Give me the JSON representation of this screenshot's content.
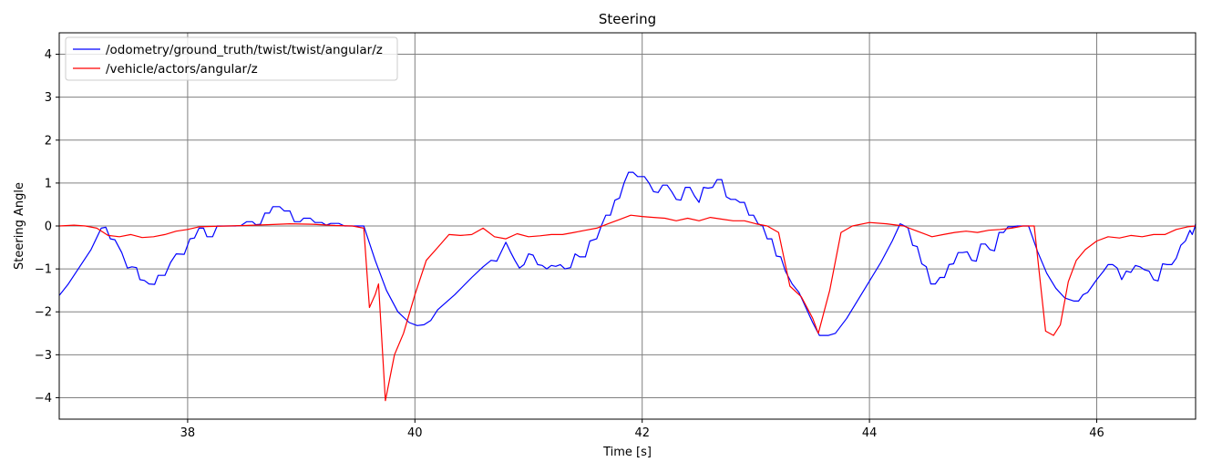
{
  "chart_data": {
    "type": "line",
    "title": "Steering",
    "xlabel": "Time [s]",
    "ylabel": "Steering Angle",
    "xlim": [
      36.87,
      46.87
    ],
    "ylim": [
      -4.5,
      4.5
    ],
    "xticks": [
      38,
      40,
      42,
      44,
      46
    ],
    "yticks": [
      -4,
      -3,
      -2,
      -1,
      0,
      1,
      2,
      3,
      4
    ],
    "grid": true,
    "legend_position": "upper left",
    "series": [
      {
        "name": "/odometry/ground_truth/twist/twist/angular/z",
        "color": "#0000ff",
        "points": [
          [
            36.87,
            -1.62
          ],
          [
            36.95,
            -1.35
          ],
          [
            37.05,
            -0.95
          ],
          [
            37.15,
            -0.55
          ],
          [
            37.24,
            -0.05
          ],
          [
            37.28,
            -0.03
          ],
          [
            37.32,
            -0.3
          ],
          [
            37.36,
            -0.32
          ],
          [
            37.42,
            -0.62
          ],
          [
            37.47,
            -0.98
          ],
          [
            37.51,
            -0.95
          ],
          [
            37.55,
            -0.97
          ],
          [
            37.58,
            -1.25
          ],
          [
            37.62,
            -1.27
          ],
          [
            37.66,
            -1.35
          ],
          [
            37.71,
            -1.36
          ],
          [
            37.74,
            -1.15
          ],
          [
            37.8,
            -1.15
          ],
          [
            37.85,
            -0.85
          ],
          [
            37.9,
            -0.65
          ],
          [
            37.97,
            -0.66
          ],
          [
            38.02,
            -0.3
          ],
          [
            38.06,
            -0.28
          ],
          [
            38.1,
            -0.05
          ],
          [
            38.14,
            -0.05
          ],
          [
            38.17,
            -0.25
          ],
          [
            38.22,
            -0.25
          ],
          [
            38.26,
            0.0
          ],
          [
            38.33,
            0.0
          ],
          [
            38.38,
            0.0
          ],
          [
            38.42,
            0.0
          ],
          [
            38.47,
            0.01
          ],
          [
            38.52,
            0.1
          ],
          [
            38.57,
            0.1
          ],
          [
            38.6,
            0.03
          ],
          [
            38.64,
            0.04
          ],
          [
            38.68,
            0.3
          ],
          [
            38.72,
            0.3
          ],
          [
            38.75,
            0.45
          ],
          [
            38.81,
            0.45
          ],
          [
            38.85,
            0.35
          ],
          [
            38.9,
            0.35
          ],
          [
            38.94,
            0.1
          ],
          [
            38.99,
            0.1
          ],
          [
            39.02,
            0.18
          ],
          [
            39.08,
            0.18
          ],
          [
            39.12,
            0.08
          ],
          [
            39.18,
            0.08
          ],
          [
            39.22,
            0.02
          ],
          [
            39.26,
            0.06
          ],
          [
            39.33,
            0.06
          ],
          [
            39.38,
            0.0
          ],
          [
            39.55,
            0.0
          ],
          [
            39.65,
            -0.8
          ],
          [
            39.75,
            -1.5
          ],
          [
            39.85,
            -2.0
          ],
          [
            39.95,
            -2.25
          ],
          [
            40.02,
            -2.32
          ],
          [
            40.08,
            -2.3
          ],
          [
            40.14,
            -2.2
          ],
          [
            40.2,
            -1.95
          ],
          [
            40.35,
            -1.6
          ],
          [
            40.5,
            -1.2
          ],
          [
            40.6,
            -0.95
          ],
          [
            40.67,
            -0.8
          ],
          [
            40.72,
            -0.82
          ],
          [
            40.76,
            -0.6
          ],
          [
            40.8,
            -0.38
          ],
          [
            40.84,
            -0.6
          ],
          [
            40.88,
            -0.8
          ],
          [
            40.92,
            -0.98
          ],
          [
            40.96,
            -0.9
          ],
          [
            41.0,
            -0.65
          ],
          [
            41.04,
            -0.68
          ],
          [
            41.08,
            -0.9
          ],
          [
            41.12,
            -0.92
          ],
          [
            41.16,
            -1.0
          ],
          [
            41.2,
            -0.92
          ],
          [
            41.24,
            -0.94
          ],
          [
            41.28,
            -0.9
          ],
          [
            41.32,
            -1.0
          ],
          [
            41.37,
            -0.97
          ],
          [
            41.41,
            -0.65
          ],
          [
            41.45,
            -0.72
          ],
          [
            41.5,
            -0.72
          ],
          [
            41.54,
            -0.35
          ],
          [
            41.6,
            -0.3
          ],
          [
            41.64,
            0.0
          ],
          [
            41.68,
            0.25
          ],
          [
            41.72,
            0.25
          ],
          [
            41.76,
            0.6
          ],
          [
            41.8,
            0.65
          ],
          [
            41.84,
            1.0
          ],
          [
            41.88,
            1.25
          ],
          [
            41.92,
            1.25
          ],
          [
            41.96,
            1.15
          ],
          [
            42.02,
            1.15
          ],
          [
            42.06,
            1.0
          ],
          [
            42.1,
            0.8
          ],
          [
            42.14,
            0.78
          ],
          [
            42.18,
            0.95
          ],
          [
            42.22,
            0.95
          ],
          [
            42.26,
            0.8
          ],
          [
            42.3,
            0.62
          ],
          [
            42.34,
            0.6
          ],
          [
            42.38,
            0.9
          ],
          [
            42.42,
            0.9
          ],
          [
            42.46,
            0.7
          ],
          [
            42.5,
            0.55
          ],
          [
            42.54,
            0.9
          ],
          [
            42.58,
            0.88
          ],
          [
            42.62,
            0.9
          ],
          [
            42.66,
            1.08
          ],
          [
            42.7,
            1.08
          ],
          [
            42.74,
            0.68
          ],
          [
            42.78,
            0.62
          ],
          [
            42.82,
            0.62
          ],
          [
            42.86,
            0.55
          ],
          [
            42.9,
            0.55
          ],
          [
            42.94,
            0.25
          ],
          [
            42.98,
            0.25
          ],
          [
            43.02,
            0.05
          ],
          [
            43.06,
            0.0
          ],
          [
            43.1,
            -0.3
          ],
          [
            43.14,
            -0.3
          ],
          [
            43.18,
            -0.7
          ],
          [
            43.22,
            -0.72
          ],
          [
            43.26,
            -1.05
          ],
          [
            43.32,
            -1.35
          ],
          [
            43.38,
            -1.55
          ],
          [
            43.44,
            -1.9
          ],
          [
            43.5,
            -2.25
          ],
          [
            43.56,
            -2.55
          ],
          [
            43.64,
            -2.55
          ],
          [
            43.7,
            -2.5
          ],
          [
            43.8,
            -2.15
          ],
          [
            43.95,
            -1.5
          ],
          [
            44.1,
            -0.85
          ],
          [
            44.2,
            -0.35
          ],
          [
            44.27,
            0.05
          ],
          [
            44.31,
            0.0
          ],
          [
            44.34,
            -0.05
          ],
          [
            44.38,
            -0.45
          ],
          [
            44.42,
            -0.48
          ],
          [
            44.46,
            -0.88
          ],
          [
            44.5,
            -0.95
          ],
          [
            44.54,
            -1.35
          ],
          [
            44.58,
            -1.35
          ],
          [
            44.62,
            -1.2
          ],
          [
            44.66,
            -1.2
          ],
          [
            44.7,
            -0.9
          ],
          [
            44.74,
            -0.88
          ],
          [
            44.78,
            -0.62
          ],
          [
            44.82,
            -0.62
          ],
          [
            44.86,
            -0.6
          ],
          [
            44.9,
            -0.8
          ],
          [
            44.94,
            -0.82
          ],
          [
            44.98,
            -0.42
          ],
          [
            45.02,
            -0.42
          ],
          [
            45.06,
            -0.55
          ],
          [
            45.1,
            -0.58
          ],
          [
            45.14,
            -0.15
          ],
          [
            45.18,
            -0.15
          ],
          [
            45.22,
            -0.02
          ],
          [
            45.26,
            -0.02
          ],
          [
            45.3,
            0.0
          ],
          [
            45.4,
            0.0
          ],
          [
            45.48,
            -0.6
          ],
          [
            45.56,
            -1.1
          ],
          [
            45.64,
            -1.45
          ],
          [
            45.72,
            -1.68
          ],
          [
            45.8,
            -1.75
          ],
          [
            45.84,
            -1.75
          ],
          [
            45.88,
            -1.6
          ],
          [
            45.92,
            -1.55
          ],
          [
            46.0,
            -1.25
          ],
          [
            46.06,
            -1.05
          ],
          [
            46.1,
            -0.9
          ],
          [
            46.14,
            -0.9
          ],
          [
            46.18,
            -0.98
          ],
          [
            46.22,
            -1.25
          ],
          [
            46.26,
            -1.05
          ],
          [
            46.3,
            -1.08
          ],
          [
            46.34,
            -0.92
          ],
          [
            46.38,
            -0.95
          ],
          [
            46.42,
            -1.02
          ],
          [
            46.46,
            -1.05
          ],
          [
            46.5,
            -1.25
          ],
          [
            46.54,
            -1.28
          ],
          [
            46.58,
            -0.88
          ],
          [
            46.62,
            -0.9
          ],
          [
            46.66,
            -0.9
          ],
          [
            46.7,
            -0.75
          ],
          [
            46.74,
            -0.45
          ],
          [
            46.78,
            -0.35
          ],
          [
            46.82,
            -0.1
          ],
          [
            46.84,
            -0.2
          ],
          [
            46.86,
            -0.05
          ],
          [
            46.87,
            0.05
          ]
        ]
      },
      {
        "name": "/vehicle/actors/angular/z",
        "color": "#ff0000",
        "points": [
          [
            36.87,
            0.0
          ],
          [
            37.0,
            0.02
          ],
          [
            37.1,
            0.0
          ],
          [
            37.2,
            -0.05
          ],
          [
            37.3,
            -0.22
          ],
          [
            37.4,
            -0.25
          ],
          [
            37.5,
            -0.2
          ],
          [
            37.6,
            -0.27
          ],
          [
            37.7,
            -0.25
          ],
          [
            37.8,
            -0.2
          ],
          [
            37.9,
            -0.12
          ],
          [
            38.0,
            -0.08
          ],
          [
            38.1,
            -0.02
          ],
          [
            38.2,
            -0.01
          ],
          [
            38.35,
            0.0
          ],
          [
            38.5,
            0.01
          ],
          [
            38.7,
            0.03
          ],
          [
            38.9,
            0.05
          ],
          [
            39.1,
            0.04
          ],
          [
            39.3,
            0.01
          ],
          [
            39.45,
            0.0
          ],
          [
            39.55,
            -0.05
          ],
          [
            39.6,
            -1.9
          ],
          [
            39.65,
            -1.6
          ],
          [
            39.68,
            -1.35
          ],
          [
            39.74,
            -4.07
          ],
          [
            39.82,
            -3.0
          ],
          [
            39.9,
            -2.5
          ],
          [
            40.0,
            -1.6
          ],
          [
            40.1,
            -0.8
          ],
          [
            40.2,
            -0.5
          ],
          [
            40.3,
            -0.2
          ],
          [
            40.4,
            -0.22
          ],
          [
            40.5,
            -0.2
          ],
          [
            40.6,
            -0.05
          ],
          [
            40.7,
            -0.25
          ],
          [
            40.8,
            -0.3
          ],
          [
            40.9,
            -0.18
          ],
          [
            41.0,
            -0.25
          ],
          [
            41.1,
            -0.23
          ],
          [
            41.2,
            -0.2
          ],
          [
            41.3,
            -0.2
          ],
          [
            41.4,
            -0.15
          ],
          [
            41.5,
            -0.1
          ],
          [
            41.6,
            -0.05
          ],
          [
            41.7,
            0.05
          ],
          [
            41.8,
            0.15
          ],
          [
            41.9,
            0.25
          ],
          [
            42.0,
            0.22
          ],
          [
            42.1,
            0.2
          ],
          [
            42.2,
            0.18
          ],
          [
            42.3,
            0.12
          ],
          [
            42.4,
            0.18
          ],
          [
            42.5,
            0.12
          ],
          [
            42.6,
            0.2
          ],
          [
            42.7,
            0.16
          ],
          [
            42.8,
            0.12
          ],
          [
            42.9,
            0.12
          ],
          [
            43.0,
            0.05
          ],
          [
            43.1,
            0.0
          ],
          [
            43.2,
            -0.15
          ],
          [
            43.3,
            -1.4
          ],
          [
            43.4,
            -1.65
          ],
          [
            43.5,
            -2.15
          ],
          [
            43.55,
            -2.5
          ],
          [
            43.65,
            -1.5
          ],
          [
            43.75,
            -0.15
          ],
          [
            43.85,
            0.0
          ],
          [
            44.0,
            0.08
          ],
          [
            44.15,
            0.05
          ],
          [
            44.3,
            0.0
          ],
          [
            44.45,
            -0.15
          ],
          [
            44.55,
            -0.25
          ],
          [
            44.65,
            -0.2
          ],
          [
            44.75,
            -0.15
          ],
          [
            44.85,
            -0.12
          ],
          [
            44.95,
            -0.15
          ],
          [
            45.05,
            -0.1
          ],
          [
            45.15,
            -0.08
          ],
          [
            45.25,
            -0.05
          ],
          [
            45.35,
            0.0
          ],
          [
            45.45,
            0.0
          ],
          [
            45.55,
            -2.45
          ],
          [
            45.62,
            -2.55
          ],
          [
            45.68,
            -2.3
          ],
          [
            45.75,
            -1.3
          ],
          [
            45.82,
            -0.8
          ],
          [
            45.9,
            -0.55
          ],
          [
            46.0,
            -0.35
          ],
          [
            46.1,
            -0.25
          ],
          [
            46.2,
            -0.28
          ],
          [
            46.3,
            -0.22
          ],
          [
            46.4,
            -0.25
          ],
          [
            46.5,
            -0.2
          ],
          [
            46.6,
            -0.2
          ],
          [
            46.7,
            -0.08
          ],
          [
            46.8,
            -0.02
          ],
          [
            46.87,
            0.0
          ]
        ]
      }
    ]
  }
}
